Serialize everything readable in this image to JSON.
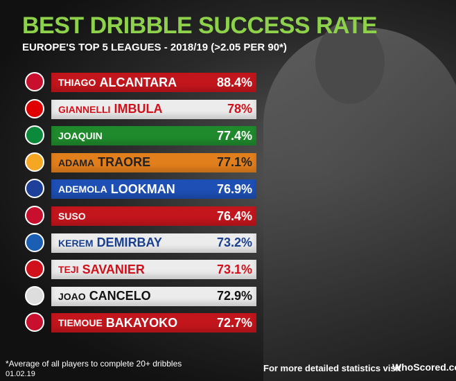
{
  "header": {
    "title": "BEST DRIBBLE SUCCESS RATE",
    "subtitle": "EUROPE'S TOP 5 LEAGUES - 2018/19 (>2.05 PER 90*)"
  },
  "rows": [
    {
      "first": "THIAGO",
      "last": "ALCANTARA",
      "value": "88.4%",
      "bar": "#c3151c",
      "text": "#ffffff",
      "badge": "#c8102e"
    },
    {
      "first": "GIANNELLI",
      "last": "IMBULA",
      "value": "78%",
      "bar": "#ececec",
      "text": "#d0101a",
      "badge": "#e00000"
    },
    {
      "first": "JOAQUIN",
      "last": "",
      "value": "77.4%",
      "bar": "#1f8a2c",
      "text": "#ffffff",
      "badge": "#0a8a3a"
    },
    {
      "first": "ADAMA",
      "last": "TRAORE",
      "value": "77.1%",
      "bar": "#e27f1d",
      "text": "#222222",
      "badge": "#f5a623"
    },
    {
      "first": "ADEMOLA",
      "last": "LOOKMAN",
      "value": "76.9%",
      "bar": "#1e4fb5",
      "text": "#ffffff",
      "badge": "#1e3f9a"
    },
    {
      "first": "SUSO",
      "last": "",
      "value": "76.4%",
      "bar": "#c3151c",
      "text": "#ffffff",
      "badge": "#c8102e"
    },
    {
      "first": "KEREM",
      "last": "DEMIRBAY",
      "value": "73.2%",
      "bar": "#ececec",
      "text": "#1a3f8f",
      "badge": "#1a5fb4"
    },
    {
      "first": "TEJI",
      "last": "SAVANIER",
      "value": "73.1%",
      "bar": "#ececec",
      "text": "#d0101a",
      "badge": "#d0101a"
    },
    {
      "first": "JOAO",
      "last": "CANCELO",
      "value": "72.9%",
      "bar": "#ececec",
      "text": "#111111",
      "badge": "#dddddd"
    },
    {
      "first": "TIEMOUE",
      "last": "BAKAYOKO",
      "value": "72.7%",
      "bar": "#c3151c",
      "text": "#ffffff",
      "badge": "#c8102e"
    }
  ],
  "footer": {
    "note": "*Average of all players to complete 20+ dribbles",
    "date": "01.02.19",
    "cta": "For more detailed statistics visit",
    "brand": "WhoScored.com"
  }
}
